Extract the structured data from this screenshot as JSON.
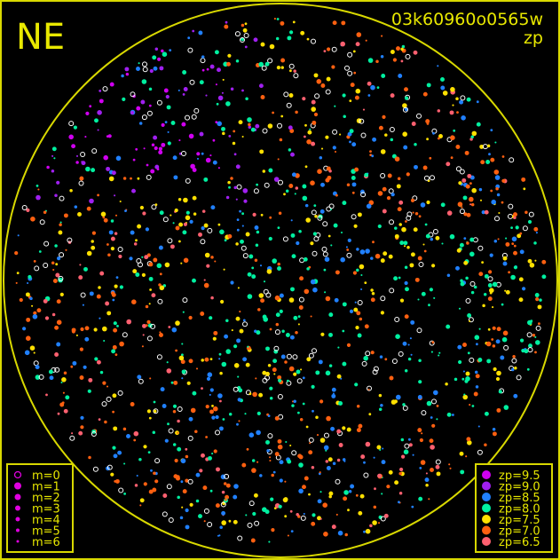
{
  "header": {
    "direction": "NE",
    "frame_id": "03k60960o0565w",
    "mode": "zp"
  },
  "colors": {
    "frame": "#d8d800",
    "background": "#000000"
  },
  "chart_data": {
    "type": "scatter",
    "projection": "all-sky fisheye",
    "magnitude_legend": {
      "items": [
        {
          "label": "m=0",
          "style": "open-ring"
        },
        {
          "label": "m=1",
          "style": "filled-large"
        },
        {
          "label": "m=2",
          "style": "filled"
        },
        {
          "label": "m=3",
          "style": "filled"
        },
        {
          "label": "m=4",
          "style": "filled-small"
        },
        {
          "label": "m=5",
          "style": "filled-small"
        },
        {
          "label": "m=6",
          "style": "filled-tiny"
        }
      ],
      "color": "#e000e0",
      "position": "bottom-left"
    },
    "zp_legend": {
      "items": [
        {
          "label": "zp=9.5",
          "value": 9.5,
          "color": "#d000f0"
        },
        {
          "label": "zp=9.0",
          "value": 9.0,
          "color": "#a020f0"
        },
        {
          "label": "zp=8.5",
          "value": 8.5,
          "color": "#2080ff"
        },
        {
          "label": "zp=8.0",
          "value": 8.0,
          "color": "#00f0a0"
        },
        {
          "label": "zp=7.5",
          "value": 7.5,
          "color": "#ffe000"
        },
        {
          "label": "zp=7.0",
          "value": 7.0,
          "color": "#ff6010"
        },
        {
          "label": "zp=6.5",
          "value": 6.5,
          "color": "#ff6070"
        }
      ],
      "position": "bottom-right"
    },
    "unmatched_color": "#ffffff"
  }
}
